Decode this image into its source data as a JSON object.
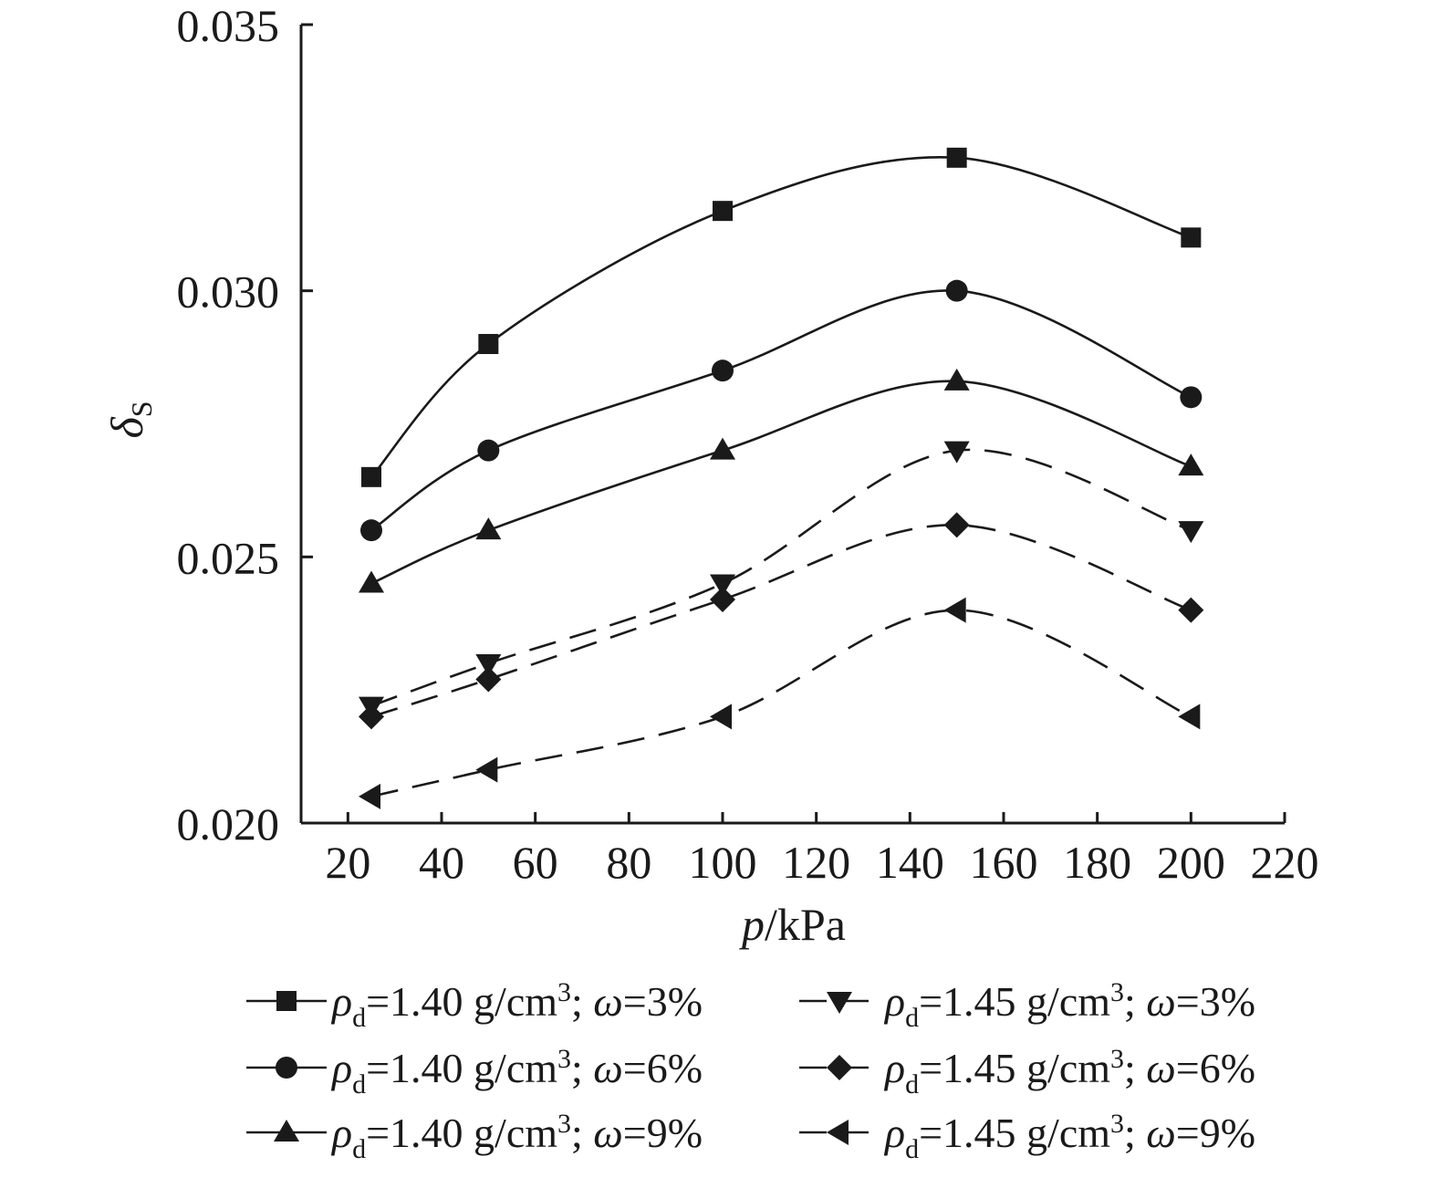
{
  "chart_data": {
    "type": "line",
    "xlabel": {
      "var": "p",
      "unit": "/kPa"
    },
    "ylabel": {
      "var": "δ",
      "sub": "S"
    },
    "xlim": [
      10,
      220
    ],
    "ylim": [
      0.02,
      0.035
    ],
    "x_ticks": [
      "20",
      "40",
      "60",
      "80",
      "100",
      "120",
      "140",
      "160",
      "180",
      "200",
      "220"
    ],
    "y_ticks": [
      "0.020",
      "0.025",
      "0.030",
      "0.035"
    ],
    "x": [
      25,
      50,
      100,
      150,
      200
    ],
    "series": [
      {
        "name": "ρd=1.40 g/cm³; ω=3%",
        "marker": "square",
        "dashed": false,
        "values": [
          0.0265,
          0.029,
          0.0315,
          0.0325,
          0.031
        ],
        "legend": {
          "rho": "ρ",
          "sub": "d",
          "eq": "=1.40 g/cm",
          "sup": "3",
          "semi": "; ",
          "omega": "ω",
          "pct": "=3%"
        }
      },
      {
        "name": "ρd=1.40 g/cm³; ω=6%",
        "marker": "circle",
        "dashed": false,
        "values": [
          0.0255,
          0.027,
          0.0285,
          0.03,
          0.028
        ],
        "legend": {
          "rho": "ρ",
          "sub": "d",
          "eq": "=1.40 g/cm",
          "sup": "3",
          "semi": "; ",
          "omega": "ω",
          "pct": "=6%"
        }
      },
      {
        "name": "ρd=1.40 g/cm³; ω=9%",
        "marker": "triangle-up",
        "dashed": false,
        "values": [
          0.0245,
          0.0255,
          0.027,
          0.0283,
          0.0267
        ],
        "legend": {
          "rho": "ρ",
          "sub": "d",
          "eq": "=1.40 g/cm",
          "sup": "3",
          "semi": "; ",
          "omega": "ω",
          "pct": "=9%"
        }
      },
      {
        "name": "ρd=1.45 g/cm³; ω=3%",
        "marker": "triangle-down",
        "dashed": true,
        "values": [
          0.0222,
          0.023,
          0.0245,
          0.027,
          0.0255
        ],
        "legend": {
          "rho": "ρ",
          "sub": "d",
          "eq": "=1.45 g/cm",
          "sup": "3",
          "semi": "; ",
          "omega": "ω",
          "pct": "=3%"
        }
      },
      {
        "name": "ρd=1.45 g/cm³; ω=6%",
        "marker": "diamond",
        "dashed": true,
        "values": [
          0.022,
          0.0227,
          0.0242,
          0.0256,
          0.024
        ],
        "legend": {
          "rho": "ρ",
          "sub": "d",
          "eq": "=1.45 g/cm",
          "sup": "3",
          "semi": "; ",
          "omega": "ω",
          "pct": "=6%"
        }
      },
      {
        "name": "ρd=1.45 g/cm³; ω=9%",
        "marker": "triangle-left",
        "dashed": true,
        "values": [
          0.0205,
          0.021,
          0.022,
          0.024,
          0.022
        ],
        "legend": {
          "rho": "ρ",
          "sub": "d",
          "eq": "=1.45 g/cm",
          "sup": "3",
          "semi": "; ",
          "omega": "ω",
          "pct": "=9%"
        }
      }
    ],
    "grid": false,
    "legend_position": "bottom",
    "colors": {
      "ink": "#1a1a1a",
      "background": "#ffffff"
    }
  }
}
